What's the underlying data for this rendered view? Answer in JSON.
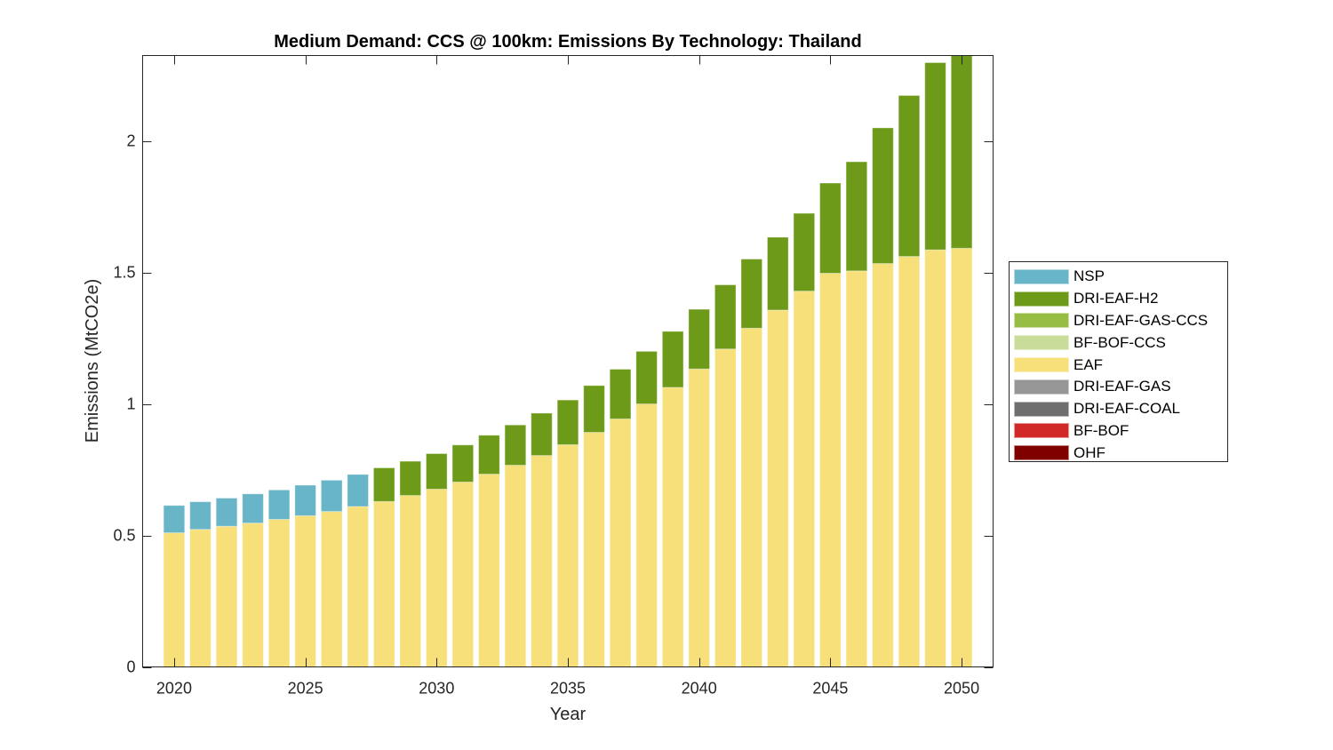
{
  "chart_data": {
    "type": "bar",
    "stacked": true,
    "title": "Medium Demand: CCS @ 100km: Emissions By Technology: Thailand",
    "xlabel": "Year",
    "ylabel": "Emissions (MtCO2e)",
    "xlim": [
      2018.8,
      2051.2
    ],
    "ylim": [
      0,
      2.325
    ],
    "grid": false,
    "legend_position": "right-outside",
    "x_ticks": [
      2020,
      2025,
      2030,
      2035,
      2040,
      2045,
      2050
    ],
    "x_tick_labels": [
      "2020",
      "2025",
      "2030",
      "2035",
      "2040",
      "2045",
      "2050"
    ],
    "y_ticks": [
      0,
      0.5,
      1,
      1.5,
      2
    ],
    "y_tick_labels": [
      "0",
      "0.5",
      "1",
      "1.5",
      "2"
    ],
    "categories": [
      2020,
      2021,
      2022,
      2023,
      2024,
      2025,
      2026,
      2027,
      2028,
      2029,
      2030,
      2031,
      2032,
      2033,
      2034,
      2035,
      2036,
      2037,
      2038,
      2039,
      2040,
      2041,
      2042,
      2043,
      2044,
      2045,
      2046,
      2047,
      2048,
      2049,
      2050
    ],
    "stack_order_bottom_to_top": [
      "OHF",
      "BF-BOF",
      "DRI-EAF-COAL",
      "DRI-EAF-GAS",
      "EAF",
      "BF-BOF-CCS",
      "DRI-EAF-GAS-CCS",
      "DRI-EAF-H2",
      "NSP"
    ],
    "series": [
      {
        "name": "NSP",
        "color": "#67B5C6",
        "values": [
          0.104,
          0.105,
          0.107,
          0.111,
          0.112,
          0.116,
          0.119,
          0.122,
          0,
          0,
          0,
          0,
          0,
          0,
          0,
          0,
          0,
          0,
          0,
          0,
          0,
          0,
          0,
          0,
          0,
          0,
          0,
          0,
          0,
          0,
          0
        ]
      },
      {
        "name": "DRI-EAF-H2",
        "color": "#6E9A1A",
        "values": [
          0,
          0,
          0,
          0,
          0,
          0,
          0,
          0,
          0.128,
          0.13,
          0.135,
          0.141,
          0.148,
          0.153,
          0.161,
          0.17,
          0.178,
          0.189,
          0.2,
          0.213,
          0.227,
          0.244,
          0.263,
          0.277,
          0.296,
          0.343,
          0.415,
          0.516,
          0.612,
          0.712,
          0.738
        ]
      },
      {
        "name": "DRI-EAF-GAS-CCS",
        "color": "#98BD45",
        "values": [
          0,
          0,
          0,
          0,
          0,
          0,
          0,
          0,
          0,
          0,
          0,
          0,
          0,
          0,
          0,
          0,
          0,
          0,
          0,
          0,
          0,
          0,
          0,
          0,
          0,
          0,
          0,
          0,
          0,
          0,
          0
        ]
      },
      {
        "name": "BF-BOF-CCS",
        "color": "#C9DC9A",
        "values": [
          0,
          0,
          0,
          0,
          0,
          0,
          0,
          0,
          0,
          0,
          0,
          0,
          0,
          0,
          0,
          0,
          0,
          0,
          0,
          0,
          0,
          0,
          0,
          0,
          0,
          0,
          0,
          0,
          0,
          0,
          0
        ]
      },
      {
        "name": "EAF",
        "color": "#F7DF7A",
        "values": [
          0.51,
          0.523,
          0.535,
          0.547,
          0.561,
          0.575,
          0.591,
          0.61,
          0.629,
          0.652,
          0.676,
          0.703,
          0.733,
          0.767,
          0.804,
          0.845,
          0.892,
          0.943,
          1.0,
          1.063,
          1.133,
          1.209,
          1.288,
          1.357,
          1.429,
          1.497,
          1.506,
          1.534,
          1.561,
          1.586,
          1.592
        ]
      },
      {
        "name": "DRI-EAF-GAS",
        "color": "#969696",
        "values": [
          0,
          0,
          0,
          0,
          0,
          0,
          0,
          0,
          0,
          0,
          0,
          0,
          0,
          0,
          0,
          0,
          0,
          0,
          0,
          0,
          0,
          0,
          0,
          0,
          0,
          0,
          0,
          0,
          0,
          0,
          0
        ]
      },
      {
        "name": "DRI-EAF-COAL",
        "color": "#6E6E6E",
        "values": [
          0,
          0,
          0,
          0,
          0,
          0,
          0,
          0,
          0,
          0,
          0,
          0,
          0,
          0,
          0,
          0,
          0,
          0,
          0,
          0,
          0,
          0,
          0,
          0,
          0,
          0,
          0,
          0,
          0,
          0,
          0
        ]
      },
      {
        "name": "BF-BOF",
        "color": "#D12828",
        "values": [
          0,
          0,
          0,
          0,
          0,
          0,
          0,
          0,
          0,
          0,
          0,
          0,
          0,
          0,
          0,
          0,
          0,
          0,
          0,
          0,
          0,
          0,
          0,
          0,
          0,
          0,
          0,
          0,
          0,
          0,
          0
        ]
      },
      {
        "name": "OHF",
        "color": "#800000",
        "values": [
          0,
          0,
          0,
          0,
          0,
          0,
          0,
          0,
          0,
          0,
          0,
          0,
          0,
          0,
          0,
          0,
          0,
          0,
          0,
          0,
          0,
          0,
          0,
          0,
          0,
          0,
          0,
          0,
          0,
          0,
          0
        ]
      }
    ],
    "legend_entries": [
      "NSP",
      "DRI-EAF-H2",
      "DRI-EAF-GAS-CCS",
      "BF-BOF-CCS",
      "EAF",
      "DRI-EAF-GAS",
      "DRI-EAF-COAL",
      "BF-BOF",
      "OHF"
    ]
  }
}
